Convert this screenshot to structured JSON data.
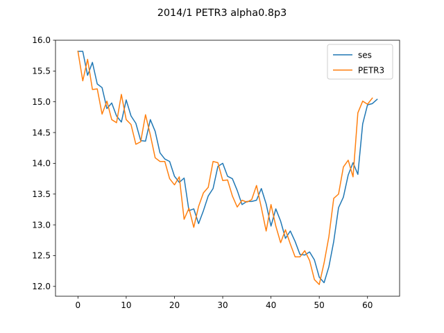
{
  "chart_data": {
    "type": "line",
    "title": "2014/1 PETR3 alpha0.8p3",
    "xlabel": "",
    "ylabel": "",
    "xlim": [
      -4.65,
      66.65
    ],
    "ylim": [
      11.84,
      16.0
    ],
    "xticks": [
      0,
      10,
      20,
      30,
      40,
      50,
      60
    ],
    "yticks": [
      12.0,
      12.5,
      13.0,
      13.5,
      14.0,
      14.5,
      15.0,
      15.5,
      16.0
    ],
    "xtick_labels": [
      "0",
      "10",
      "20",
      "30",
      "40",
      "50",
      "60"
    ],
    "ytick_labels": [
      "12.0",
      "12.5",
      "13.0",
      "13.5",
      "14.0",
      "14.5",
      "15.0",
      "15.5",
      "16.0"
    ],
    "grid": false,
    "legend": {
      "placement": "upper right"
    },
    "series": [
      {
        "name": "ses",
        "color": "#1f77b4",
        "x": [
          0,
          1,
          2,
          3,
          4,
          5,
          6,
          7,
          8,
          9,
          10,
          11,
          12,
          13,
          14,
          15,
          16,
          17,
          18,
          19,
          20,
          21,
          22,
          23,
          24,
          25,
          26,
          27,
          28,
          29,
          30,
          31,
          32,
          33,
          34,
          35,
          36,
          37,
          38,
          39,
          40,
          41,
          42,
          43,
          44,
          45,
          46,
          47,
          48,
          49,
          50,
          51,
          52,
          53,
          54,
          55,
          56,
          57,
          58,
          59,
          60,
          61,
          62
        ],
        "values": [
          15.82,
          15.82,
          15.43,
          15.64,
          15.29,
          15.23,
          14.89,
          14.98,
          14.77,
          14.67,
          15.03,
          14.77,
          14.65,
          14.37,
          14.36,
          14.71,
          14.52,
          14.17,
          14.07,
          14.03,
          13.79,
          13.69,
          13.76,
          13.23,
          13.26,
          13.02,
          13.23,
          13.47,
          13.59,
          13.95,
          14.0,
          13.79,
          13.75,
          13.56,
          13.33,
          13.38,
          13.38,
          13.4,
          13.59,
          13.34,
          12.98,
          13.26,
          13.06,
          12.78,
          12.9,
          12.73,
          12.52,
          12.51,
          12.56,
          12.43,
          12.15,
          12.06,
          12.32,
          12.73,
          13.28,
          13.45,
          13.81,
          14.01,
          13.82,
          14.64,
          14.95,
          14.97,
          15.04
        ]
      },
      {
        "name": "PETR3",
        "color": "#ff7f0e",
        "x": [
          0,
          1,
          2,
          3,
          4,
          5,
          6,
          7,
          8,
          9,
          10,
          11,
          12,
          13,
          14,
          15,
          16,
          17,
          18,
          19,
          20,
          21,
          22,
          23,
          24,
          25,
          26,
          27,
          28,
          29,
          30,
          31,
          32,
          33,
          34,
          35,
          36,
          37,
          38,
          39,
          40,
          41,
          42,
          43,
          44,
          45,
          46,
          47,
          48,
          49,
          50,
          51,
          52,
          53,
          54,
          55,
          56,
          57,
          58,
          59,
          60,
          61
        ],
        "values": [
          15.82,
          15.34,
          15.69,
          15.2,
          15.21,
          14.8,
          15.01,
          14.71,
          14.66,
          15.12,
          14.71,
          14.63,
          14.31,
          14.35,
          14.79,
          14.46,
          14.09,
          14.03,
          14.03,
          13.75,
          13.65,
          13.78,
          13.09,
          13.27,
          12.96,
          13.3,
          13.52,
          13.61,
          14.03,
          14.01,
          13.72,
          13.73,
          13.47,
          13.29,
          13.4,
          13.37,
          13.41,
          13.64,
          13.28,
          12.9,
          13.33,
          12.98,
          12.71,
          12.92,
          12.69,
          12.48,
          12.48,
          12.58,
          12.42,
          12.11,
          12.03,
          12.38,
          12.81,
          13.43,
          13.5,
          13.94,
          14.05,
          13.78,
          14.82,
          15.01,
          14.96,
          15.06
        ]
      }
    ]
  }
}
